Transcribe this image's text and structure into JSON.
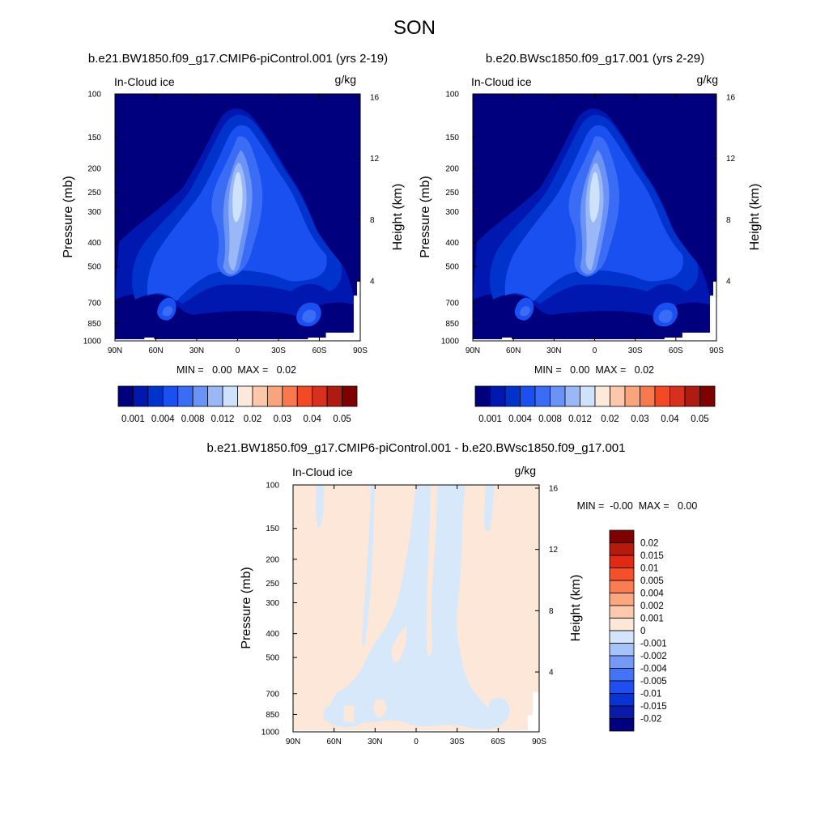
{
  "figure": {
    "title": "SON"
  },
  "colors": {
    "abs_levels": [
      "#00007f",
      "#0017b0",
      "#0033cc",
      "#1a4ff0",
      "#3a6cf5",
      "#6a93f5",
      "#9ab8f7",
      "#cfe2fb",
      "#fde8dc",
      "#fcc8ac",
      "#f9a47d",
      "#f7794d",
      "#f24a24",
      "#d7301f",
      "#b01a10",
      "#7f0000"
    ],
    "diff_levels": [
      "#00007f",
      "#0a1ba8",
      "#0a33d4",
      "#1f4ff2",
      "#4474f5",
      "#7599f7",
      "#a5c2f9",
      "#d4e5fb",
      "#fde7d8",
      "#fcc9ad",
      "#fba780",
      "#f87d53",
      "#f4502c",
      "#e12a14",
      "#b51a0c",
      "#7f0000"
    ],
    "diff_pos": "#fde7d8",
    "diff_neg": "#d8e8fb"
  },
  "chart_data": [
    {
      "type": "contour",
      "title": "b.e21.BW1850.f09_g17.CMIP6-piControl.001 (yrs 2-19)",
      "left_label": "In-Cloud ice",
      "right_label": "g/kg",
      "ylabel": "Pressure (mb)",
      "ylabel_right": "Height (km)",
      "xlim": [
        90,
        -90
      ],
      "ylim": [
        1000,
        100
      ],
      "xticks": [
        "90N",
        "60N",
        "30N",
        "0",
        "30S",
        "60S",
        "90S"
      ],
      "yticks": [
        "100",
        "150",
        "200",
        "250",
        "300",
        "400",
        "500",
        "700",
        "850",
        "1000"
      ],
      "yticks_right": [
        "16",
        "12",
        "8",
        "4"
      ],
      "min_max_label": "MIN =   0.00  MAX =   0.02",
      "colorbar_labels": [
        "0.001",
        "0.004",
        "0.008",
        "0.012",
        "0.02",
        "0.03",
        "0.04",
        "0.05"
      ]
    },
    {
      "type": "contour",
      "title": "b.e20.BWsc1850.f09_g17.001 (yrs 2-29)",
      "left_label": "In-Cloud ice",
      "right_label": "g/kg",
      "ylabel": "Pressure (mb)",
      "ylabel_right": "Height (km)",
      "xlim": [
        90,
        -90
      ],
      "ylim": [
        1000,
        100
      ],
      "xticks": [
        "90N",
        "60N",
        "30N",
        "0",
        "30S",
        "60S",
        "90S"
      ],
      "yticks": [
        "100",
        "150",
        "200",
        "250",
        "300",
        "400",
        "500",
        "700",
        "850",
        "1000"
      ],
      "yticks_right": [
        "16",
        "12",
        "8",
        "4"
      ],
      "min_max_label": "MIN =   0.00  MAX =   0.02",
      "colorbar_labels": [
        "0.001",
        "0.004",
        "0.008",
        "0.012",
        "0.02",
        "0.03",
        "0.04",
        "0.05"
      ]
    },
    {
      "type": "contour",
      "title": "b.e21.BW1850.f09_g17.CMIP6-piControl.001 - b.e20.BWsc1850.f09_g17.001",
      "left_label": "In-Cloud ice",
      "right_label": "g/kg",
      "ylabel": "Pressure (mb)",
      "ylabel_right": "Height (km)",
      "xlim": [
        90,
        -90
      ],
      "ylim": [
        1000,
        100
      ],
      "xticks": [
        "90N",
        "60N",
        "30N",
        "0",
        "30S",
        "60S",
        "90S"
      ],
      "yticks": [
        "100",
        "150",
        "200",
        "250",
        "300",
        "400",
        "500",
        "700",
        "850",
        "1000"
      ],
      "yticks_right": [
        "16",
        "12",
        "8",
        "4"
      ],
      "min_max_label": "MIN =  -0.00  MAX =   0.00",
      "colorbar_labels": [
        "0.02",
        "0.015",
        "0.01",
        "0.005",
        "0.004",
        "0.002",
        "0.001",
        "0",
        "-0.001",
        "-0.002",
        "-0.004",
        "-0.005",
        "-0.01",
        "-0.015",
        "-0.02"
      ]
    }
  ]
}
